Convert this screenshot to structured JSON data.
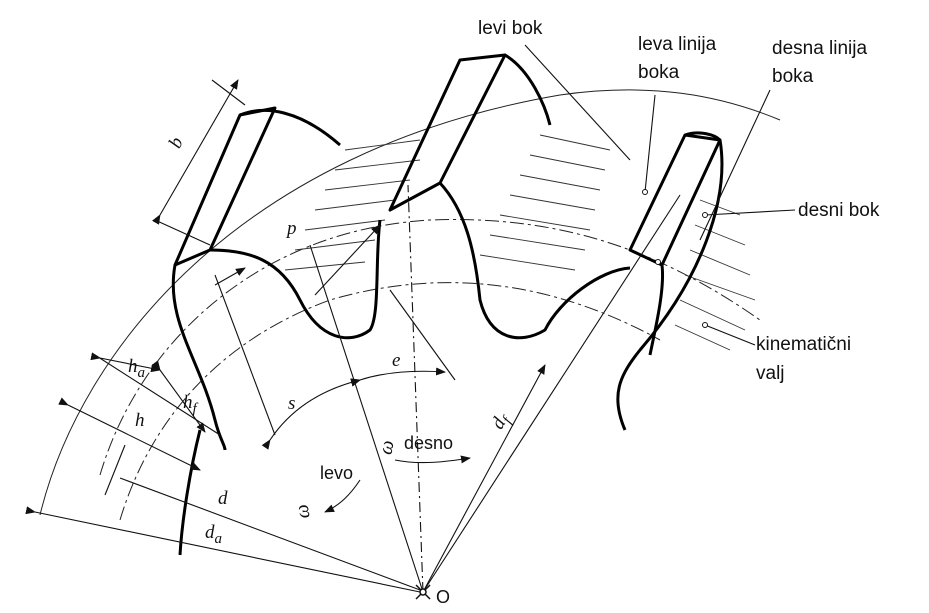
{
  "labels": {
    "levi_bok": "levi bok",
    "leva_linija_1": "leva linija",
    "leva_linija_2": "boka",
    "desna_linija_1": "desna linija",
    "desna_linija_2": "boka",
    "desni_bok": "desni bok",
    "kinematicni_1": "kinematični",
    "kinematicni_2": "valj",
    "desno": "desno",
    "levo": "levo"
  },
  "symbols": {
    "b": "b",
    "p": "p",
    "s": "s",
    "e": "e",
    "ha": "h",
    "ha_sub": "a",
    "hf": "h",
    "hf_sub": "f",
    "h": "h",
    "d": "d",
    "da": "d",
    "da_sub": "a",
    "df": "d",
    "df_sub": "f",
    "omega_right": "ω",
    "omega_left": "ω",
    "origin": "O"
  }
}
